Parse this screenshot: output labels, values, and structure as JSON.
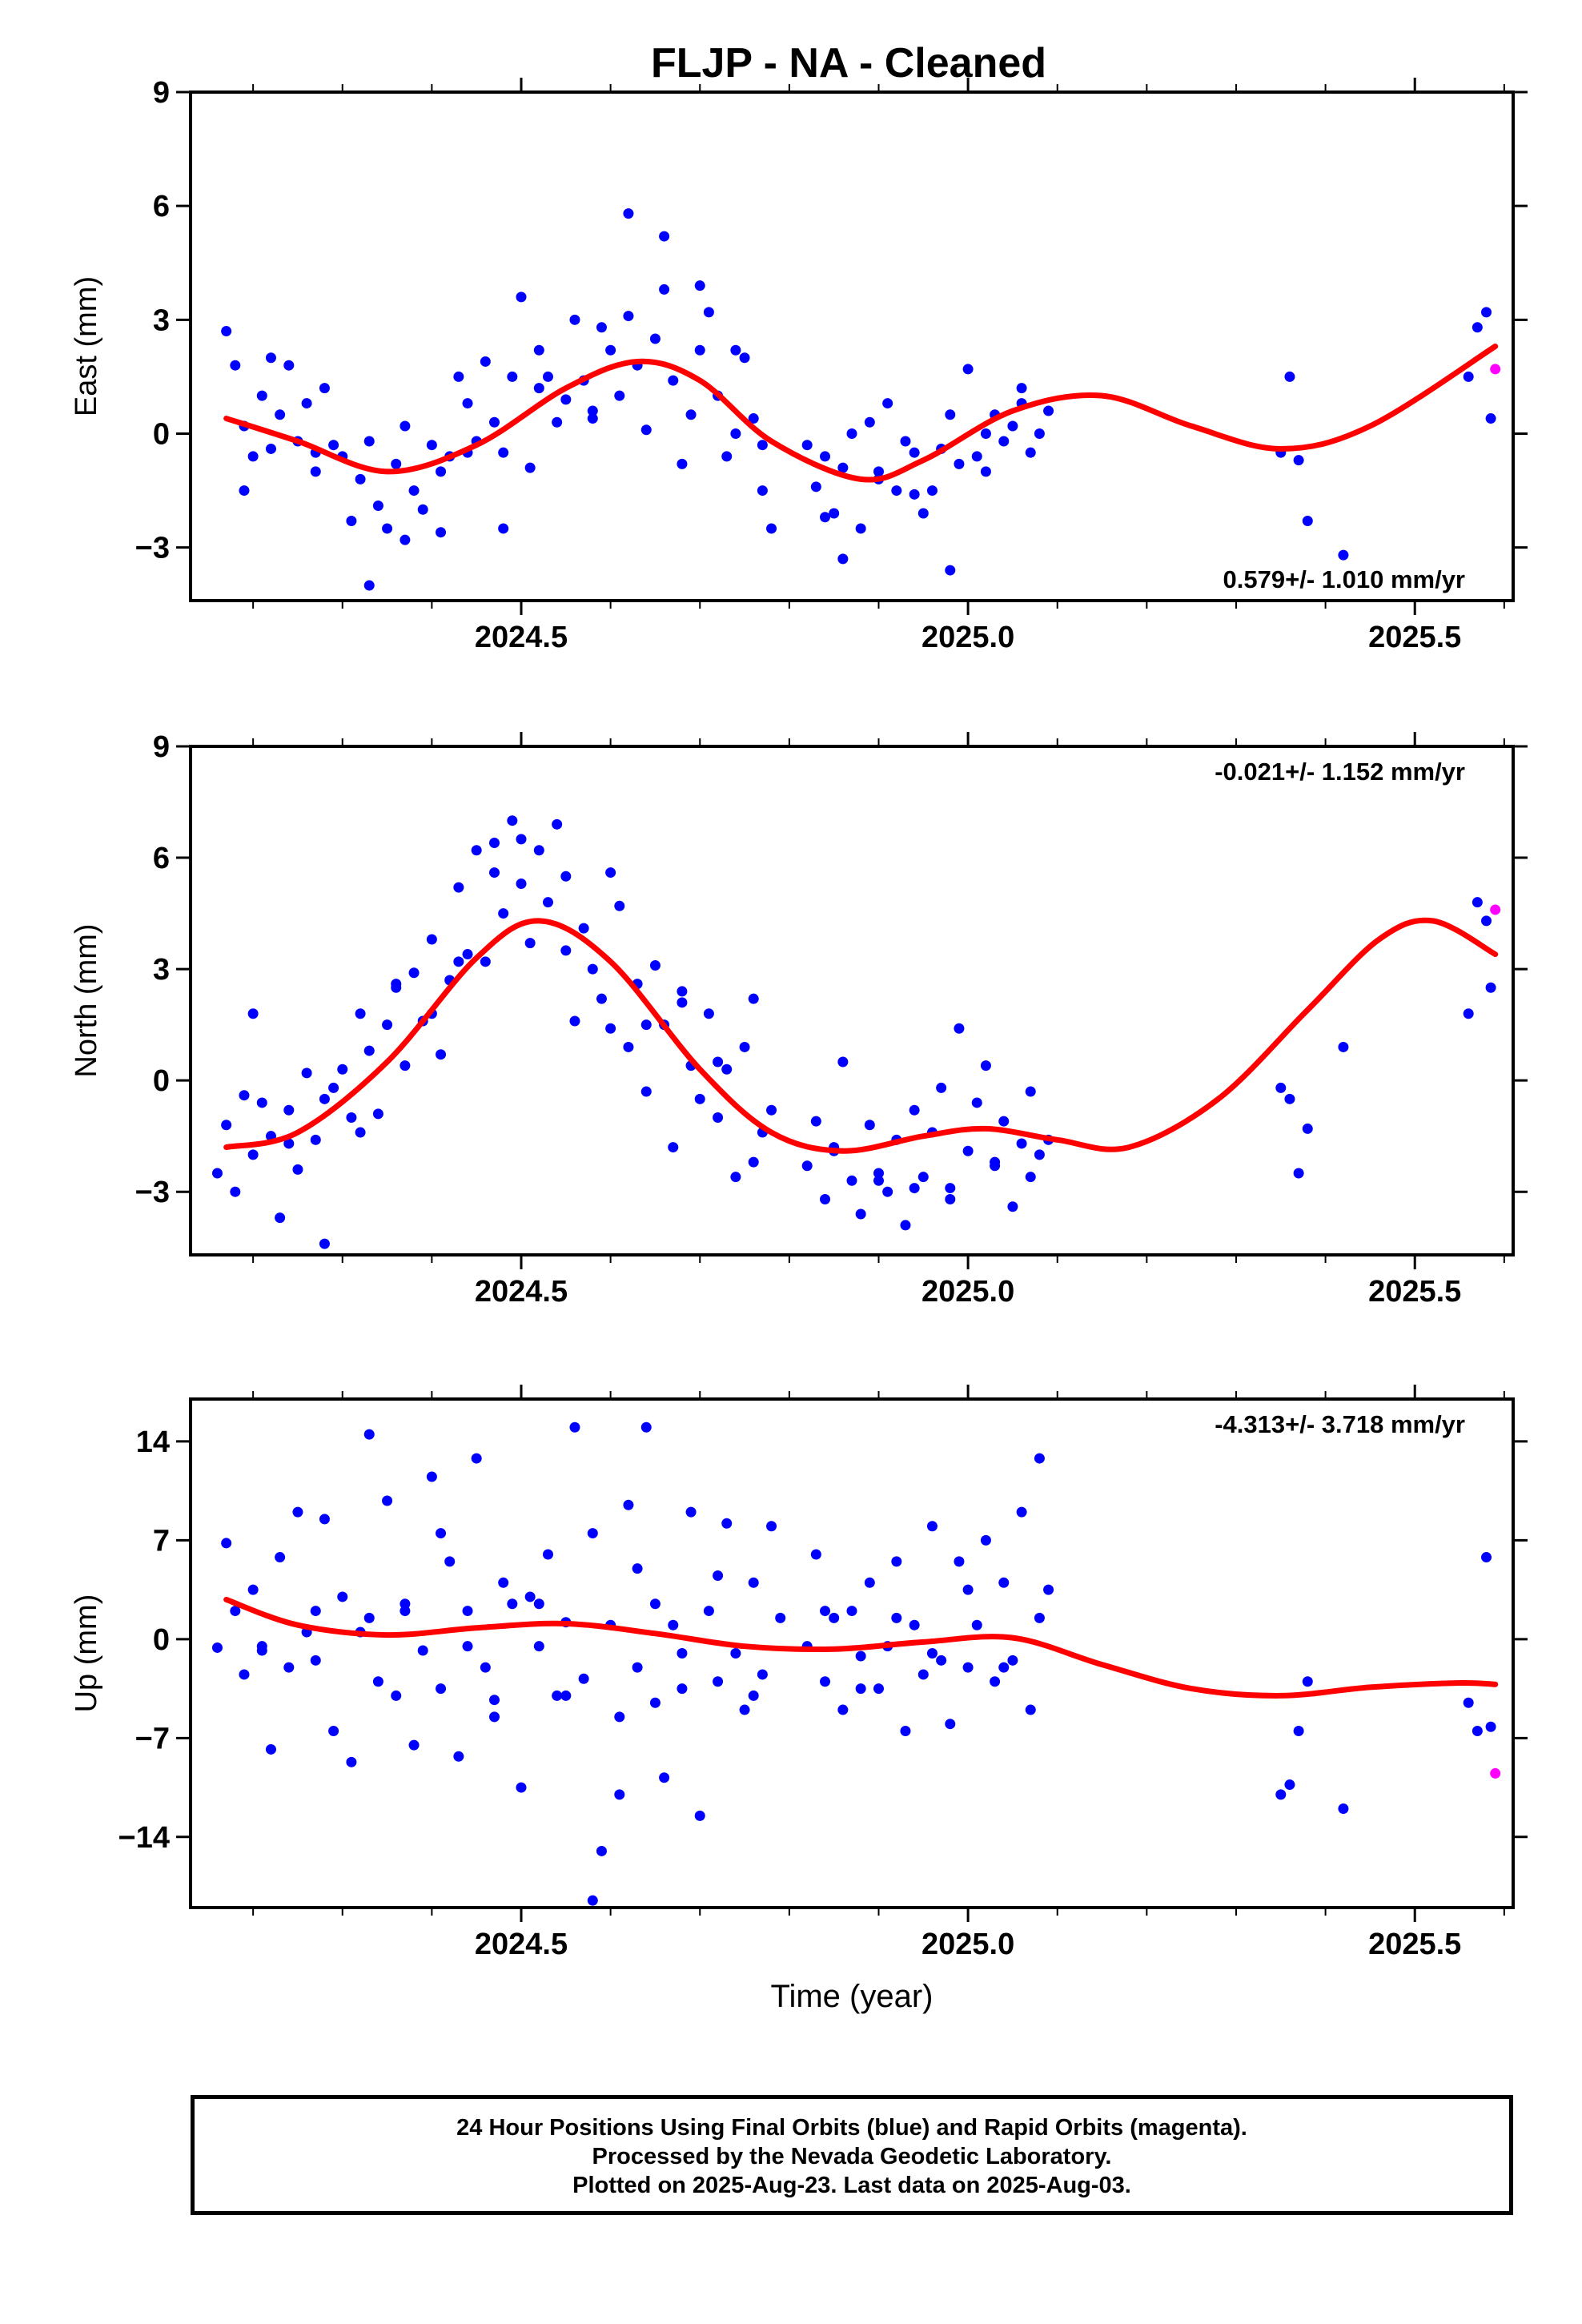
{
  "title": "FLJP  - NA - Cleaned",
  "colors": {
    "final": "#0000ff",
    "rapid": "#ff00ff",
    "model": "#ff0000",
    "frame": "#000000"
  },
  "chart_data": [
    {
      "type": "scatter",
      "ylabel": "East (mm)",
      "xlabel": "",
      "xlim": [
        2024.13,
        2025.61
      ],
      "ylim": [
        -4.4,
        9.0
      ],
      "xticks": [
        2024.5,
        2025.0,
        2025.5
      ],
      "xtick_labels": [
        "2024.5",
        "2025.0",
        "2025.5"
      ],
      "yticks": [
        -3,
        0,
        3,
        6,
        9
      ],
      "ytick_labels": [
        "−3",
        "0",
        "3",
        "6",
        "9"
      ],
      "annotation": "0.579+/- 1.010 mm/yr",
      "annotation_position": "bottom-right",
      "model": {
        "name": "",
        "x": [
          2024.17,
          2024.25,
          2024.35,
          2024.45,
          2024.55,
          2024.63,
          2024.7,
          2024.78,
          2024.88,
          2024.95,
          2025.05,
          2025.15,
          2025.25,
          2025.35,
          2025.45,
          2025.59
        ],
        "y": [
          0.4,
          -0.2,
          -1.0,
          -0.3,
          1.2,
          1.9,
          1.4,
          -0.2,
          -1.2,
          -0.7,
          0.6,
          1.0,
          0.2,
          -0.4,
          0.2,
          2.3
        ]
      },
      "series": [
        {
          "name": "",
          "kind": "final",
          "x": [
            2024.17,
            2024.18,
            2024.19,
            2024.2,
            2024.21,
            2024.22,
            2024.23,
            2024.24,
            2024.25,
            2024.26,
            2024.27,
            2024.28,
            2024.29,
            2024.3,
            2024.31,
            2024.32,
            2024.33,
            2024.34,
            2024.35,
            2024.36,
            2024.37,
            2024.38,
            2024.39,
            2024.4,
            2024.41,
            2024.42,
            2024.43,
            2024.44,
            2024.45,
            2024.46,
            2024.47,
            2024.48,
            2024.49,
            2024.5,
            2024.51,
            2024.52,
            2024.53,
            2024.54,
            2024.55,
            2024.56,
            2024.57,
            2024.58,
            2024.59,
            2024.6,
            2024.61,
            2024.62,
            2024.63,
            2024.64,
            2024.65,
            2024.66,
            2024.67,
            2024.68,
            2024.69,
            2024.7,
            2024.71,
            2024.72,
            2024.73,
            2024.74,
            2024.75,
            2024.76,
            2024.77,
            2024.78,
            2024.82,
            2024.83,
            2024.84,
            2024.85,
            2024.86,
            2024.87,
            2024.88,
            2024.89,
            2024.9,
            2024.91,
            2024.92,
            2024.93,
            2024.94,
            2024.95,
            2024.96,
            2024.97,
            2024.98,
            2024.99,
            2025.0,
            2025.01,
            2025.02,
            2025.03,
            2025.04,
            2025.05,
            2025.06,
            2025.07,
            2025.08,
            2025.09,
            2025.35,
            2025.36,
            2025.37,
            2025.38,
            2025.42,
            2025.56,
            2025.57,
            2025.58,
            2025.585,
            2024.19,
            2024.22,
            2024.27,
            2024.33,
            2024.37,
            2024.41,
            2024.44,
            2024.48,
            2024.52,
            2024.58,
            2024.62,
            2024.66,
            2024.7,
            2024.74,
            2024.77,
            2024.84,
            2024.86,
            2024.9,
            2024.94,
            2024.98,
            2025.02,
            2025.06
          ],
          "y": [
            2.7,
            1.8,
            0.2,
            -0.6,
            1.0,
            -0.4,
            0.5,
            1.8,
            -0.2,
            0.8,
            -0.5,
            1.2,
            -0.3,
            -0.6,
            -2.3,
            -1.2,
            -0.2,
            -1.9,
            -2.5,
            -0.8,
            0.2,
            -1.5,
            -2.0,
            -0.3,
            -1.0,
            -0.6,
            1.5,
            0.8,
            -0.2,
            1.9,
            0.3,
            -0.5,
            1.5,
            3.6,
            -0.9,
            2.2,
            1.5,
            0.3,
            0.9,
            3.0,
            1.4,
            0.4,
            2.8,
            2.2,
            1.0,
            3.1,
            1.8,
            0.1,
            2.5,
            3.8,
            1.4,
            -0.8,
            0.5,
            2.2,
            3.2,
            1.0,
            -0.6,
            0.0,
            2.0,
            0.4,
            -1.5,
            -2.5,
            -0.3,
            -1.4,
            -0.6,
            -2.1,
            -0.9,
            0.0,
            -2.5,
            0.3,
            -1.2,
            0.8,
            -1.5,
            -0.2,
            -0.5,
            -2.1,
            -1.5,
            -0.4,
            0.5,
            -0.8,
            1.7,
            -0.6,
            0.0,
            0.5,
            -0.2,
            0.2,
            1.2,
            -0.5,
            0.0,
            0.6,
            -0.5,
            1.5,
            -0.7,
            -2.3,
            -3.2,
            1.5,
            2.8,
            3.2,
            0.4,
            -1.5,
            2.0,
            -1.0,
            -4.0,
            -2.8,
            -2.6,
            -0.5,
            -2.5,
            1.2,
            0.6,
            5.8,
            5.2,
            3.9,
            2.2,
            -0.3,
            -2.2,
            -3.3,
            -1.0,
            -1.6,
            -3.6,
            -1.0,
            0.8
          ]
        },
        {
          "name": "",
          "kind": "rapid",
          "x": [
            2025.59
          ],
          "y": [
            1.7
          ]
        }
      ]
    },
    {
      "type": "scatter",
      "ylabel": "North (mm)",
      "xlabel": "",
      "xlim": [
        2024.13,
        2025.61
      ],
      "ylim": [
        -4.7,
        9.0
      ],
      "xticks": [
        2024.5,
        2025.0,
        2025.5
      ],
      "xtick_labels": [
        "2024.5",
        "2025.0",
        "2025.5"
      ],
      "yticks": [
        -3,
        0,
        3,
        6,
        9
      ],
      "ytick_labels": [
        "−3",
        "0",
        "3",
        "6",
        "9"
      ],
      "annotation": "-0.021+/- 1.152 mm/yr",
      "annotation_position": "top-right",
      "model": {
        "name": "",
        "x": [
          2024.17,
          2024.25,
          2024.35,
          2024.45,
          2024.52,
          2024.6,
          2024.7,
          2024.78,
          2024.86,
          2024.95,
          2025.02,
          2025.1,
          2025.18,
          2025.28,
          2025.38,
          2025.46,
          2025.52,
          2025.59
        ],
        "y": [
          -1.8,
          -1.4,
          0.5,
          3.3,
          4.3,
          3.2,
          0.3,
          -1.4,
          -1.9,
          -1.5,
          -1.3,
          -1.6,
          -1.8,
          -0.5,
          1.9,
          3.8,
          4.3,
          3.4
        ]
      },
      "series": [
        {
          "name": "",
          "kind": "final",
          "x": [
            2024.16,
            2024.17,
            2024.18,
            2024.19,
            2024.2,
            2024.21,
            2024.22,
            2024.23,
            2024.24,
            2024.25,
            2024.26,
            2024.27,
            2024.28,
            2024.29,
            2024.3,
            2024.31,
            2024.32,
            2024.33,
            2024.34,
            2024.35,
            2024.36,
            2024.37,
            2024.38,
            2024.39,
            2024.4,
            2024.41,
            2024.42,
            2024.43,
            2024.44,
            2024.45,
            2024.46,
            2024.47,
            2024.48,
            2024.49,
            2024.5,
            2024.51,
            2024.52,
            2024.53,
            2024.54,
            2024.55,
            2024.56,
            2024.57,
            2024.58,
            2024.59,
            2024.6,
            2024.61,
            2024.62,
            2024.63,
            2024.64,
            2024.65,
            2024.66,
            2024.67,
            2024.68,
            2024.69,
            2024.7,
            2024.71,
            2024.72,
            2024.73,
            2024.74,
            2024.75,
            2024.76,
            2024.77,
            2024.78,
            2024.82,
            2024.83,
            2024.84,
            2024.85,
            2024.86,
            2024.87,
            2024.88,
            2024.89,
            2024.9,
            2024.91,
            2024.92,
            2024.93,
            2024.94,
            2024.95,
            2024.96,
            2024.97,
            2024.98,
            2024.99,
            2025.0,
            2025.01,
            2025.02,
            2025.03,
            2025.04,
            2025.05,
            2025.06,
            2025.07,
            2025.08,
            2025.09,
            2025.35,
            2025.36,
            2025.37,
            2025.38,
            2025.42,
            2025.56,
            2025.57,
            2025.58,
            2025.585,
            2024.2,
            2024.24,
            2024.28,
            2024.32,
            2024.36,
            2024.4,
            2024.43,
            2024.47,
            2024.5,
            2024.55,
            2024.6,
            2024.64,
            2024.68,
            2024.72,
            2024.76,
            2024.85,
            2024.9,
            2024.94,
            2024.98,
            2025.03,
            2025.07
          ],
          "y": [
            -2.5,
            -1.2,
            -3.0,
            -0.4,
            -2.0,
            -0.6,
            -1.5,
            -3.7,
            -0.8,
            -2.4,
            0.2,
            -1.6,
            -4.4,
            -0.2,
            0.3,
            -1.0,
            1.8,
            0.8,
            -0.9,
            1.5,
            2.5,
            0.4,
            2.9,
            1.6,
            3.8,
            0.7,
            2.7,
            5.2,
            3.4,
            6.2,
            3.2,
            5.6,
            4.5,
            7.0,
            5.3,
            3.7,
            6.2,
            4.8,
            6.9,
            3.5,
            1.6,
            4.1,
            3.0,
            2.2,
            1.4,
            4.7,
            0.9,
            2.6,
            -0.3,
            3.1,
            1.5,
            -1.8,
            2.4,
            0.4,
            -0.5,
            1.8,
            -1.0,
            0.3,
            -2.6,
            0.9,
            -2.2,
            -1.4,
            -0.8,
            -2.3,
            -1.1,
            -3.2,
            -1.9,
            0.5,
            -2.7,
            -3.6,
            -1.2,
            -2.5,
            -3.0,
            -1.6,
            -3.9,
            -0.8,
            -2.6,
            -1.4,
            -0.2,
            -2.9,
            1.4,
            -1.9,
            -0.6,
            0.4,
            -2.3,
            -1.1,
            -3.4,
            -1.7,
            -0.3,
            -2.0,
            -1.6,
            -0.2,
            -0.5,
            -2.5,
            -1.3,
            0.9,
            1.8,
            4.8,
            4.3,
            2.5,
            1.8,
            -1.7,
            -0.5,
            -1.4,
            2.6,
            1.8,
            3.2,
            6.4,
            6.5,
            5.5,
            5.6,
            1.5,
            2.1,
            0.5,
            2.2,
            -1.8,
            -2.7,
            -2.9,
            -3.2,
            -2.2,
            -2.6
          ]
        },
        {
          "name": "",
          "kind": "rapid",
          "x": [
            2025.59
          ],
          "y": [
            4.6
          ]
        }
      ]
    },
    {
      "type": "scatter",
      "ylabel": "Up (mm)",
      "xlabel": "Time (year)",
      "xlim": [
        2024.13,
        2025.61
      ],
      "ylim": [
        -19.0,
        17.0
      ],
      "xticks": [
        2024.5,
        2025.0,
        2025.5
      ],
      "xtick_labels": [
        "2024.5",
        "2025.0",
        "2025.5"
      ],
      "yticks": [
        -14,
        -7,
        0,
        7,
        14
      ],
      "ytick_labels": [
        "−14",
        "−7",
        "0",
        "7",
        "14"
      ],
      "annotation": "-4.313+/- 3.718 mm/yr",
      "annotation_position": "top-right",
      "model": {
        "name": "",
        "x": [
          2024.17,
          2024.25,
          2024.35,
          2024.45,
          2024.55,
          2024.65,
          2024.75,
          2024.85,
          2024.95,
          2025.05,
          2025.15,
          2025.25,
          2025.35,
          2025.45,
          2025.55,
          2025.59
        ],
        "y": [
          2.8,
          1.0,
          0.3,
          0.8,
          1.1,
          0.4,
          -0.5,
          -0.7,
          -0.2,
          0.1,
          -1.8,
          -3.5,
          -4.0,
          -3.4,
          -3.1,
          -3.2
        ]
      },
      "series": [
        {
          "name": "",
          "kind": "final",
          "x": [
            2024.16,
            2024.17,
            2024.18,
            2024.19,
            2024.2,
            2024.21,
            2024.22,
            2024.23,
            2024.24,
            2024.25,
            2024.26,
            2024.27,
            2024.28,
            2024.29,
            2024.3,
            2024.31,
            2024.32,
            2024.33,
            2024.34,
            2024.35,
            2024.36,
            2024.37,
            2024.38,
            2024.39,
            2024.4,
            2024.41,
            2024.42,
            2024.43,
            2024.44,
            2024.45,
            2024.46,
            2024.47,
            2024.48,
            2024.49,
            2024.5,
            2024.51,
            2024.52,
            2024.53,
            2024.54,
            2024.55,
            2024.56,
            2024.57,
            2024.58,
            2024.59,
            2024.6,
            2024.61,
            2024.62,
            2024.63,
            2024.64,
            2024.65,
            2024.66,
            2024.67,
            2024.68,
            2024.69,
            2024.7,
            2024.71,
            2024.72,
            2024.73,
            2024.74,
            2024.75,
            2024.76,
            2024.77,
            2024.78,
            2024.82,
            2024.83,
            2024.84,
            2024.85,
            2024.86,
            2024.87,
            2024.88,
            2024.89,
            2024.9,
            2024.91,
            2024.92,
            2024.93,
            2024.94,
            2024.95,
            2024.96,
            2024.97,
            2024.98,
            2024.99,
            2025.0,
            2025.01,
            2025.02,
            2025.03,
            2025.04,
            2025.05,
            2025.06,
            2025.07,
            2025.08,
            2025.09,
            2025.35,
            2025.36,
            2025.37,
            2025.38,
            2025.42,
            2025.56,
            2025.57,
            2025.58,
            2025.585,
            2024.21,
            2024.27,
            2024.33,
            2024.37,
            2024.41,
            2024.44,
            2024.47,
            2024.52,
            2024.55,
            2024.58,
            2024.61,
            2024.63,
            2024.65,
            2024.68,
            2024.72,
            2024.76,
            2024.79,
            2024.84,
            2024.88,
            2024.92,
            2024.96,
            2025.0,
            2025.04,
            2025.08
          ],
          "y": [
            -0.6,
            6.8,
            2.0,
            -2.5,
            3.5,
            -0.8,
            -7.8,
            5.8,
            -2.0,
            9.0,
            0.5,
            -1.5,
            8.5,
            -6.5,
            3.0,
            -8.7,
            0.5,
            14.5,
            -3.0,
            9.8,
            -4.0,
            2.5,
            -7.5,
            -0.8,
            11.5,
            -3.5,
            5.5,
            -8.3,
            2.0,
            12.8,
            -2.0,
            -4.3,
            4.0,
            2.5,
            -10.5,
            3.0,
            -0.5,
            6.0,
            -4.0,
            1.2,
            15.0,
            -2.8,
            7.5,
            -15.0,
            1.0,
            -5.5,
            9.5,
            -2.0,
            15.0,
            -4.5,
            -9.8,
            1.0,
            -3.5,
            9.0,
            -12.5,
            2.0,
            -3.0,
            8.2,
            -1.0,
            -5.0,
            4.0,
            -2.5,
            8.0,
            -0.5,
            6.0,
            -3.0,
            1.5,
            -5.0,
            2.0,
            -1.2,
            4.0,
            -3.5,
            -0.5,
            5.5,
            -6.5,
            1.0,
            -2.5,
            8.0,
            -1.5,
            -6.0,
            5.5,
            -2.0,
            1.0,
            7.0,
            -3.0,
            4.0,
            -1.5,
            9.0,
            -5.0,
            12.8,
            3.5,
            -11.0,
            -10.3,
            -6.5,
            -3.0,
            -12.0,
            -4.5,
            -6.5,
            5.8,
            -6.2,
            -0.5,
            2.0,
            1.5,
            2.0,
            7.5,
            -0.5,
            -5.5,
            2.5,
            -4.0,
            -18.5,
            -11.0,
            5.0,
            2.5,
            -1.0,
            4.5,
            -4.0,
            1.5,
            2.0,
            -3.5,
            1.5,
            -1.0,
            3.5,
            -2.0,
            1.5
          ]
        },
        {
          "name": "",
          "kind": "rapid",
          "x": [
            2025.59
          ],
          "y": [
            -9.5
          ]
        }
      ]
    }
  ],
  "footer": {
    "line1": "24 Hour Positions Using Final Orbits (blue) and Rapid Orbits (magenta).",
    "line2": "Processed by the Nevada Geodetic Laboratory.",
    "line3": "Plotted on 2025-Aug-23. Last data on 2025-Aug-03."
  }
}
